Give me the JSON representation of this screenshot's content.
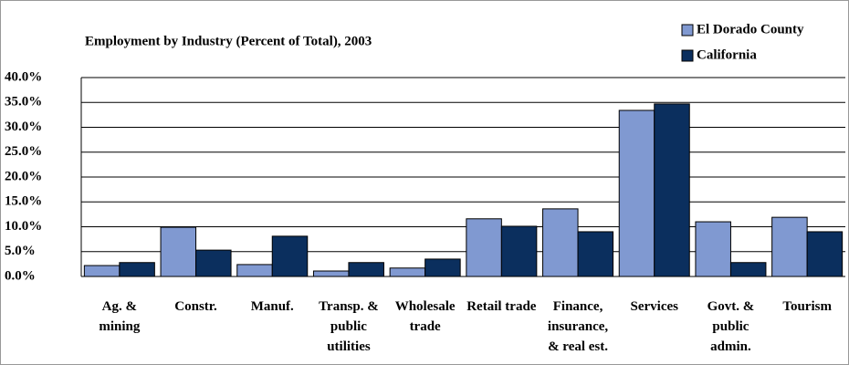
{
  "chart_data": {
    "type": "bar",
    "title": "Employment by Industry (Percent of Total), 2003",
    "categories": [
      "Ag. & mining",
      "Constr.",
      "Manuf.",
      "Transp. & public utilities",
      "Wholesale trade",
      "Retail trade",
      "Finance, insurance, & real est.",
      "Services",
      "Govt. & public admin.",
      "Tourism"
    ],
    "series": [
      {
        "name": "El Dorado County",
        "color": "#8099d1",
        "values": [
          2.2,
          9.9,
          2.4,
          1.1,
          1.7,
          11.6,
          13.6,
          33.4,
          11.0,
          11.9
        ]
      },
      {
        "name": "California",
        "color": "#0b2f5e",
        "values": [
          2.8,
          5.3,
          8.1,
          2.8,
          3.5,
          10.1,
          9.0,
          34.7,
          2.8,
          9.0
        ]
      }
    ],
    "ylim": [
      0,
      40
    ],
    "yticks": [
      {
        "value": 0,
        "label": "0.0%"
      },
      {
        "value": 5,
        "label": "5.0%"
      },
      {
        "value": 10,
        "label": "10.0%"
      },
      {
        "value": 15,
        "label": "15.0%"
      },
      {
        "value": 20,
        "label": "20.0%"
      },
      {
        "value": 25,
        "label": "25.0%"
      },
      {
        "value": 30,
        "label": "30.0%"
      },
      {
        "value": 35,
        "label": "35.0%"
      },
      {
        "value": 40,
        "label": "40.0%"
      }
    ],
    "grid": true,
    "legend": "top-right"
  }
}
